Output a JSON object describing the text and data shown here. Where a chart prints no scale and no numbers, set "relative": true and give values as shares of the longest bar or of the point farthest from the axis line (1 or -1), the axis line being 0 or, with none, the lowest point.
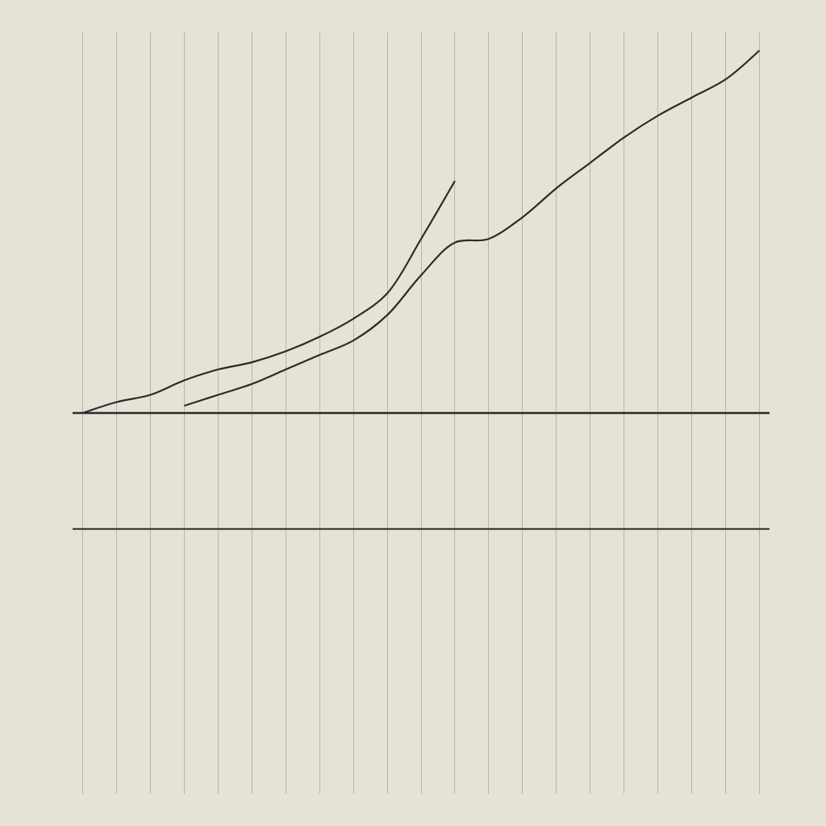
{
  "chart_data": {
    "type": "line",
    "relative": true,
    "categories": [
      null,
      null,
      null,
      null,
      null,
      null,
      null,
      null,
      null,
      null,
      null,
      null,
      null,
      null,
      null,
      null,
      null,
      null,
      null,
      null,
      null
    ],
    "series": [
      {
        "color": "#2a2a2a",
        "values": [
          0,
          0.03,
          0.05,
          0.09,
          0.12,
          0.14,
          0.17,
          0.21,
          0.26,
          0.33,
          0.48,
          0.64,
          null,
          null,
          null,
          null,
          null,
          null,
          null,
          null,
          null
        ]
      },
      {
        "color": "#2a2a2a",
        "values": [
          null,
          null,
          null,
          0.02,
          0.05,
          0.08,
          0.12,
          0.16,
          0.2,
          0.27,
          0.38,
          0.47,
          0.48,
          0.54,
          0.62,
          0.69,
          0.76,
          0.82,
          0.87,
          0.92,
          1
        ]
      }
    ],
    "ref_lines": [
      {
        "axis": "y",
        "value": -0.32,
        "color": "#2a2a2a"
      }
    ],
    "grid": true
  }
}
